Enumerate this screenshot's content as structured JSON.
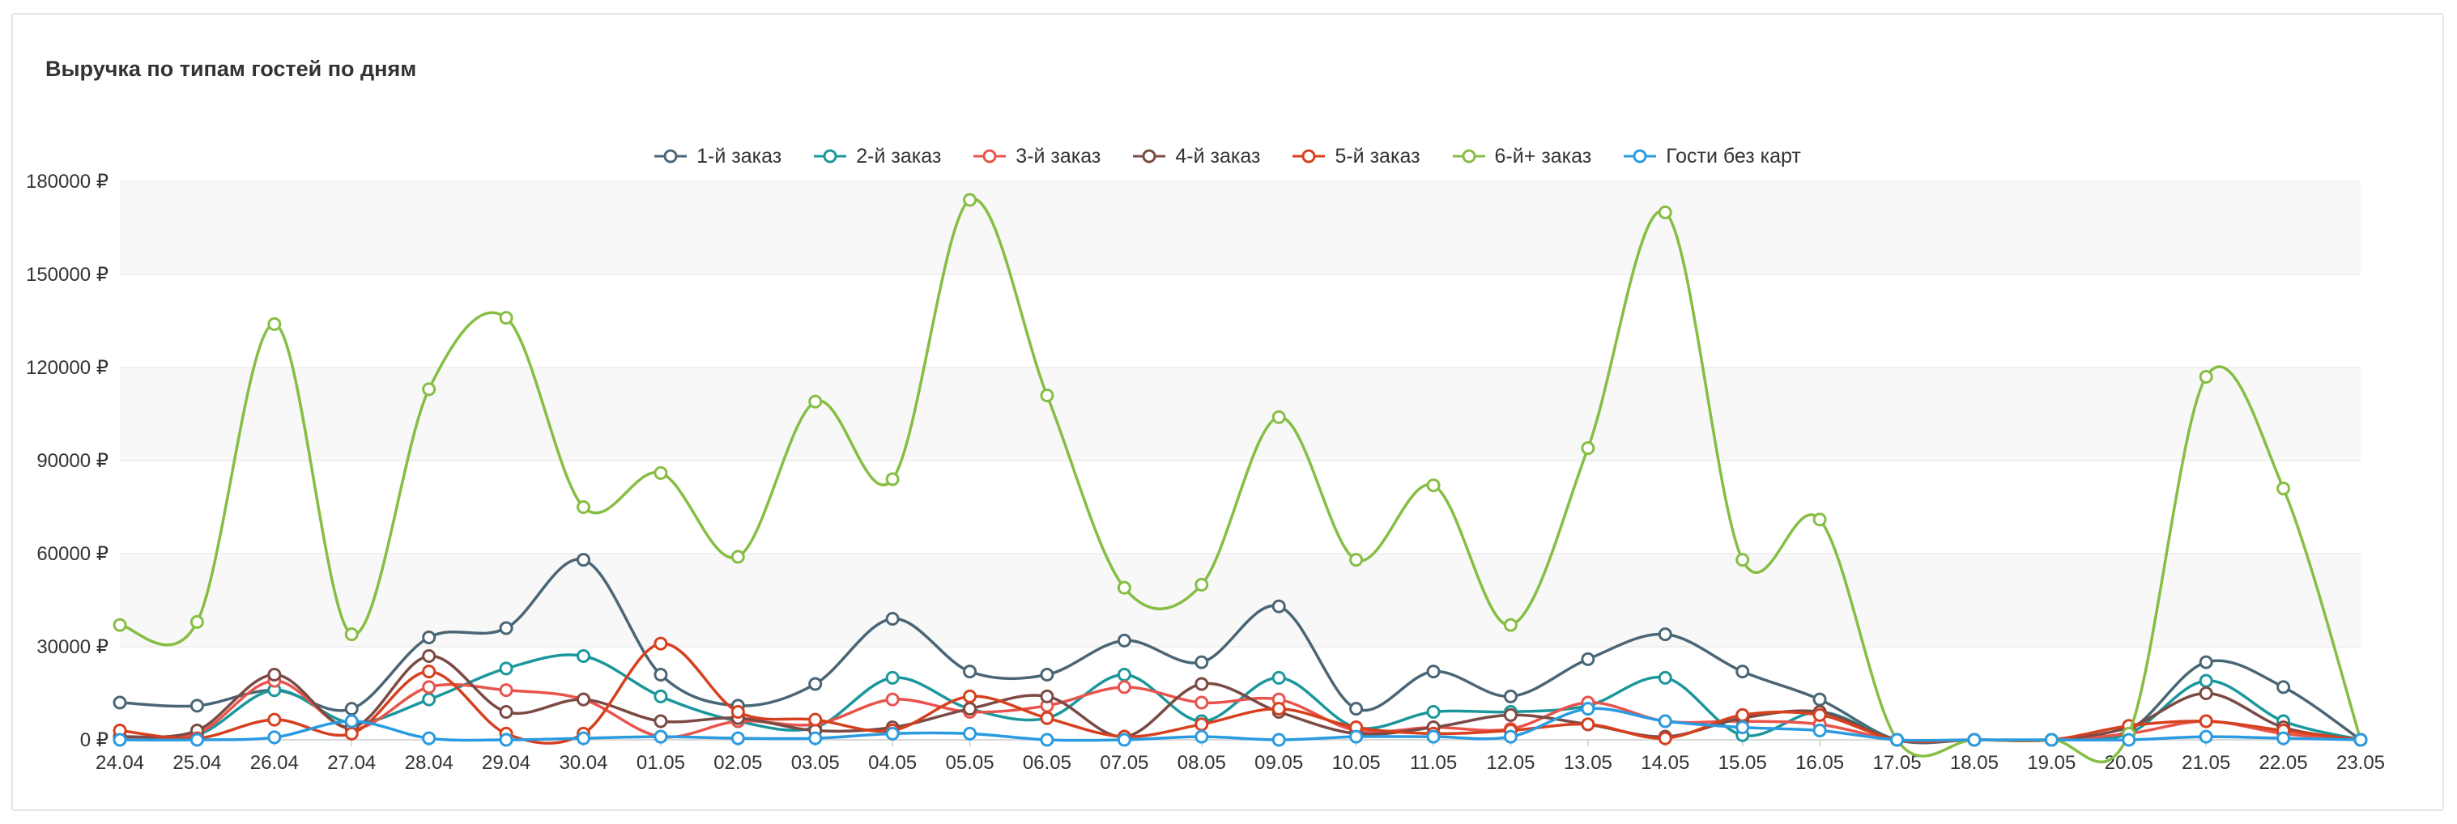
{
  "chart_data": {
    "type": "line",
    "title": "Выручка по типам гостей по дням",
    "x": [
      "24.04",
      "25.04",
      "26.04",
      "27.04",
      "28.04",
      "29.04",
      "30.04",
      "01.05",
      "02.05",
      "03.05",
      "04.05",
      "05.05",
      "06.05",
      "07.05",
      "08.05",
      "09.05",
      "10.05",
      "11.05",
      "12.05",
      "13.05",
      "14.05",
      "15.05",
      "16.05",
      "17.05",
      "18.05",
      "19.05",
      "20.05",
      "21.05",
      "22.05",
      "23.05"
    ],
    "ylim": [
      0,
      180000
    ],
    "yticks": [
      "0 ₽",
      "30000 ₽",
      "60000 ₽",
      "90000 ₽",
      "120000 ₽",
      "150000 ₽",
      "180000 ₽"
    ],
    "legend_position": "top-center",
    "grid": true,
    "series": [
      {
        "name": "1-й заказ",
        "color": "#4a6575",
        "values": [
          12000,
          11000,
          16000,
          10000,
          33000,
          36000,
          58000,
          21000,
          11000,
          18000,
          39000,
          22000,
          21000,
          32000,
          25000,
          43000,
          10000,
          22000,
          14000,
          26000,
          34000,
          22000,
          13000,
          0,
          0,
          0,
          3000,
          25000,
          17000,
          0
        ]
      },
      {
        "name": "2-й заказ",
        "color": "#1a979c",
        "values": [
          1000,
          1500,
          16000,
          5500,
          13000,
          23000,
          27000,
          14000,
          6000,
          4000,
          20000,
          10000,
          7000,
          21000,
          6000,
          20000,
          4000,
          9000,
          9000,
          11000,
          20000,
          1500,
          9000,
          0,
          0,
          0,
          2000,
          19000,
          6000,
          0
        ]
      },
      {
        "name": "3-й заказ",
        "color": "#e8534c",
        "values": [
          1000,
          2000,
          19000,
          3500,
          17000,
          16000,
          13000,
          1000,
          6000,
          5000,
          13000,
          9000,
          11000,
          17000,
          12000,
          13000,
          3000,
          4000,
          3500,
          12000,
          6000,
          6000,
          5000,
          0,
          0,
          0,
          2000,
          6000,
          2000,
          0
        ]
      },
      {
        "name": "4-й заказ",
        "color": "#7b4a44",
        "values": [
          1000,
          3000,
          21000,
          4000,
          27000,
          9000,
          13000,
          6000,
          7000,
          3000,
          4000,
          10000,
          14000,
          1000,
          18000,
          9000,
          2000,
          4000,
          8000,
          5000,
          1000,
          7000,
          9000,
          0,
          0,
          0,
          4000,
          15000,
          4000,
          0
        ]
      },
      {
        "name": "5-й заказ",
        "color": "#d6401f",
        "values": [
          3000,
          500,
          6500,
          2000,
          22000,
          2000,
          2000,
          31000,
          9000,
          6500,
          3000,
          14000,
          7000,
          1000,
          5000,
          10000,
          4000,
          2000,
          3000,
          5000,
          500,
          8000,
          8000,
          0,
          0,
          0,
          4500,
          6000,
          3000,
          0
        ]
      },
      {
        "name": "6-й+ заказ",
        "color": "#86be44",
        "values": [
          37000,
          38000,
          134000,
          34000,
          113000,
          136000,
          75000,
          86000,
          59000,
          109000,
          84000,
          174000,
          111000,
          49000,
          50000,
          104000,
          58000,
          82000,
          37000,
          94000,
          170000,
          58000,
          71000,
          0,
          0,
          0,
          2000,
          117000,
          81000,
          0
        ]
      },
      {
        "name": "Гости без карт",
        "color": "#2a9be0",
        "values": [
          0,
          0,
          800,
          6000,
          500,
          0,
          500,
          1000,
          500,
          500,
          2000,
          2000,
          0,
          0,
          1000,
          0,
          1000,
          1000,
          1000,
          10000,
          6000,
          4000,
          3000,
          0,
          0,
          0,
          0,
          1000,
          500,
          0
        ]
      }
    ]
  }
}
